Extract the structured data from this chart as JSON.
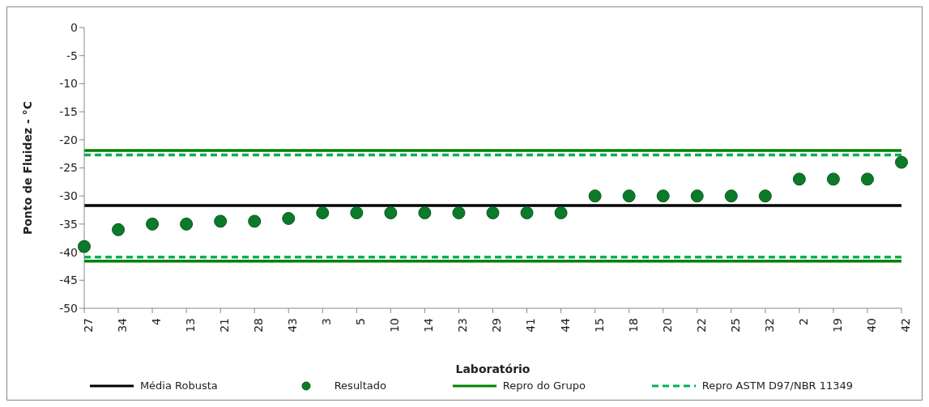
{
  "chart_data": {
    "type": "scatter",
    "xlabel": "Laboratório",
    "ylabel": "Ponto de Fluidez - °C",
    "categories": [
      "27",
      "34",
      "4",
      "13",
      "21",
      "28",
      "43",
      "3",
      "5",
      "10",
      "14",
      "23",
      "29",
      "41",
      "44",
      "15",
      "18",
      "20",
      "22",
      "25",
      "32",
      "2",
      "19",
      "40",
      "42"
    ],
    "series": [
      {
        "name": "Média Robusta",
        "type": "line",
        "color": "#000000",
        "line_style": "solid",
        "values": [
          -31.7,
          -31.7,
          -31.7,
          -31.7,
          -31.7,
          -31.7,
          -31.7,
          -31.7,
          -31.7,
          -31.7,
          -31.7,
          -31.7,
          -31.7,
          -31.7,
          -31.7,
          -31.7,
          -31.7,
          -31.7,
          -31.7,
          -31.7,
          -31.7,
          -31.7,
          -31.7,
          -31.7,
          -31.7
        ]
      },
      {
        "name": "Resultado",
        "color": "#0b7a2a",
        "marker": "circle",
        "values": [
          -39,
          -36,
          -35,
          -35,
          -34.5,
          -34.5,
          -34,
          -33,
          -33,
          -33,
          -33,
          -33,
          -33,
          -33,
          -33,
          -30,
          -30,
          -30,
          -30,
          -30,
          -30,
          -27,
          -27,
          -27,
          -24
        ]
      },
      {
        "name": "Repro do Grupo",
        "type": "line",
        "color": "#008000",
        "line_style": "solid",
        "values": [
          -21.9,
          -21.9,
          -21.9,
          -21.9,
          -21.9,
          -21.9,
          -21.9,
          -21.9,
          -21.9,
          -21.9,
          -21.9,
          -21.9,
          -21.9,
          -21.9,
          -21.9,
          -21.9,
          -21.9,
          -21.9,
          -21.9,
          -21.9,
          -21.9,
          -21.9,
          -21.9,
          -21.9,
          -21.9
        ]
      },
      {
        "name": null,
        "type": "line",
        "color": "#008000",
        "line_style": "solid",
        "values": [
          -41.6,
          -41.6,
          -41.6,
          -41.6,
          -41.6,
          -41.6,
          -41.6,
          -41.6,
          -41.6,
          -41.6,
          -41.6,
          -41.6,
          -41.6,
          -41.6,
          -41.6,
          -41.6,
          -41.6,
          -41.6,
          -41.6,
          -41.6,
          -41.6,
          -41.6,
          -41.6,
          -41.6,
          -41.6
        ]
      },
      {
        "name": "Repro ASTM D97/NBR 11349",
        "type": "line",
        "color": "#00b050",
        "line_style": "dashed",
        "values": [
          -22.7,
          -22.7,
          -22.7,
          -22.7,
          -22.7,
          -22.7,
          -22.7,
          -22.7,
          -22.7,
          -22.7,
          -22.7,
          -22.7,
          -22.7,
          -22.7,
          -22.7,
          -22.7,
          -22.7,
          -22.7,
          -22.7,
          -22.7,
          -22.7,
          -22.7,
          -22.7,
          -22.7,
          -22.7
        ]
      },
      {
        "name": null,
        "type": "line",
        "color": "#00b050",
        "line_style": "dashed",
        "values": [
          -40.9,
          -40.9,
          -40.9,
          -40.9,
          -40.9,
          -40.9,
          -40.9,
          -40.9,
          -40.9,
          -40.9,
          -40.9,
          -40.9,
          -40.9,
          -40.9,
          -40.9,
          -40.9,
          -40.9,
          -40.9,
          -40.9,
          -40.9,
          -40.9,
          -40.9,
          -40.9,
          -40.9,
          -40.9
        ]
      }
    ],
    "ylim": [
      -50,
      0
    ],
    "yticks": [
      0,
      -5,
      -10,
      -15,
      -20,
      -25,
      -30,
      -35,
      -40,
      -45,
      -50
    ],
    "grid": false,
    "legend": "bottom"
  }
}
